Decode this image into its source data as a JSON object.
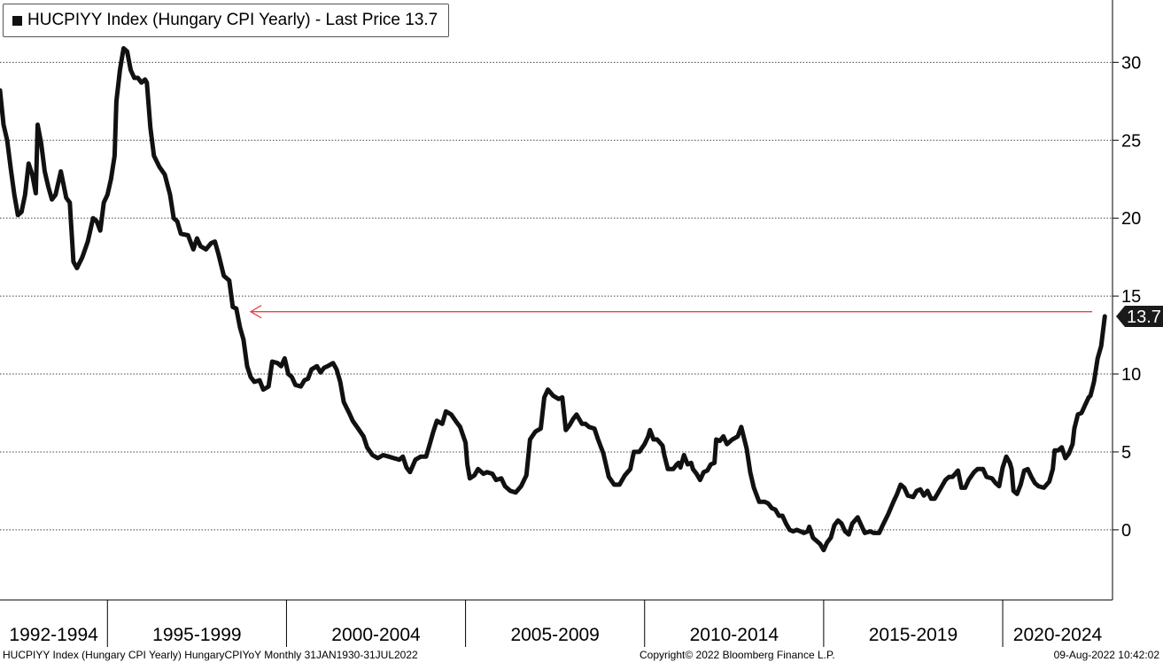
{
  "legend": {
    "text": "HUCPIYY Index (Hungary CPI Yearly) - Last Price 13.7"
  },
  "footer": {
    "left": "HUCPIYY Index (Hungary CPI Yearly) HungaryCPIYoY  Monthly 31JAN1930-31JUL2022",
    "center": "Copyright© 2022 Bloomberg Finance L.P.",
    "right": "09-Aug-2022 10:42:02"
  },
  "colors": {
    "line": "#111111",
    "arrow": "#e8424a",
    "grid": "#444444",
    "tag_bg": "#1a1a1a"
  },
  "chart_data": {
    "type": "line",
    "title": "HUCPIYY Index (Hungary CPI Yearly) - Last Price 13.7",
    "xlabel": "",
    "ylabel": "",
    "ylim": [
      -4.5,
      34
    ],
    "yticks": [
      0,
      5,
      10,
      15,
      20,
      25,
      30
    ],
    "y_axis_side": "right",
    "grid": "horizontal dotted",
    "x_categories": [
      "1992-1994",
      "1995-1999",
      "2000-2004",
      "2005-2009",
      "2010-2014",
      "2015-2019",
      "2020-2024"
    ],
    "x_category_years": [
      [
        1992,
        1995
      ],
      [
        1995,
        2000
      ],
      [
        2000,
        2005
      ],
      [
        2005,
        2010
      ],
      [
        2010,
        2015
      ],
      [
        2015,
        2020
      ],
      [
        2020,
        2025
      ]
    ],
    "last_price": 13.7,
    "last_price_label": "13.7",
    "annotation": {
      "type": "arrow",
      "value": 14.0,
      "from_year": 2022.5,
      "to_year": 1999.0
    },
    "series": [
      {
        "values": [
          [
            1992.0,
            28.2
          ],
          [
            1992.1,
            26.0
          ],
          [
            1992.2,
            25.0
          ],
          [
            1992.3,
            23.2
          ],
          [
            1992.4,
            21.5
          ],
          [
            1992.5,
            20.2
          ],
          [
            1992.6,
            20.4
          ],
          [
            1992.7,
            21.5
          ],
          [
            1992.8,
            23.5
          ],
          [
            1992.9,
            22.8
          ],
          [
            1993.0,
            21.6
          ],
          [
            1993.05,
            26.0
          ],
          [
            1993.15,
            24.8
          ],
          [
            1993.25,
            23.0
          ],
          [
            1993.35,
            22.0
          ],
          [
            1993.45,
            21.2
          ],
          [
            1993.55,
            21.5
          ],
          [
            1993.7,
            23.0
          ],
          [
            1993.85,
            21.3
          ],
          [
            1993.95,
            21.0
          ],
          [
            1994.05,
            17.2
          ],
          [
            1994.15,
            16.8
          ],
          [
            1994.3,
            17.5
          ],
          [
            1994.45,
            18.5
          ],
          [
            1994.6,
            20.0
          ],
          [
            1994.7,
            19.8
          ],
          [
            1994.8,
            19.2
          ],
          [
            1994.9,
            21.0
          ],
          [
            1995.0,
            21.5
          ],
          [
            1995.1,
            22.5
          ],
          [
            1995.2,
            24.0
          ],
          [
            1995.25,
            27.5
          ],
          [
            1995.35,
            29.5
          ],
          [
            1995.45,
            30.9
          ],
          [
            1995.55,
            30.7
          ],
          [
            1995.65,
            29.5
          ],
          [
            1995.75,
            29.0
          ],
          [
            1995.85,
            29.0
          ],
          [
            1995.95,
            28.7
          ],
          [
            1996.05,
            28.9
          ],
          [
            1996.1,
            28.7
          ],
          [
            1996.2,
            25.8
          ],
          [
            1996.3,
            24.0
          ],
          [
            1996.45,
            23.3
          ],
          [
            1996.6,
            22.8
          ],
          [
            1996.75,
            21.5
          ],
          [
            1996.85,
            20.0
          ],
          [
            1996.95,
            19.8
          ],
          [
            1997.05,
            19.0
          ],
          [
            1997.25,
            18.9
          ],
          [
            1997.4,
            18.0
          ],
          [
            1997.5,
            18.7
          ],
          [
            1997.6,
            18.2
          ],
          [
            1997.75,
            18.0
          ],
          [
            1997.9,
            18.4
          ],
          [
            1998.0,
            18.5
          ],
          [
            1998.1,
            17.7
          ],
          [
            1998.25,
            16.3
          ],
          [
            1998.4,
            16.0
          ],
          [
            1998.5,
            14.3
          ],
          [
            1998.6,
            14.2
          ],
          [
            1998.7,
            13.0
          ],
          [
            1998.8,
            12.2
          ],
          [
            1998.9,
            10.5
          ],
          [
            1999.0,
            9.8
          ],
          [
            1999.1,
            9.5
          ],
          [
            1999.25,
            9.6
          ],
          [
            1999.35,
            9.0
          ],
          [
            1999.5,
            9.2
          ],
          [
            1999.6,
            10.8
          ],
          [
            1999.75,
            10.7
          ],
          [
            1999.85,
            10.5
          ],
          [
            1999.95,
            11.0
          ],
          [
            2000.05,
            10.0
          ],
          [
            2000.15,
            9.8
          ],
          [
            2000.25,
            9.3
          ],
          [
            2000.4,
            9.2
          ],
          [
            2000.5,
            9.6
          ],
          [
            2000.6,
            9.7
          ],
          [
            2000.7,
            10.3
          ],
          [
            2000.85,
            10.5
          ],
          [
            2000.95,
            10.1
          ],
          [
            2001.05,
            10.4
          ],
          [
            2001.15,
            10.5
          ],
          [
            2001.3,
            10.7
          ],
          [
            2001.4,
            10.3
          ],
          [
            2001.5,
            9.5
          ],
          [
            2001.6,
            8.2
          ],
          [
            2001.75,
            7.5
          ],
          [
            2001.85,
            7.0
          ],
          [
            2002.0,
            6.5
          ],
          [
            2002.15,
            6.0
          ],
          [
            2002.25,
            5.3
          ],
          [
            2002.4,
            4.8
          ],
          [
            2002.55,
            4.6
          ],
          [
            2002.7,
            4.8
          ],
          [
            2002.85,
            4.7
          ],
          [
            2003.0,
            4.6
          ],
          [
            2003.15,
            4.5
          ],
          [
            2003.25,
            4.7
          ],
          [
            2003.35,
            4.0
          ],
          [
            2003.45,
            3.7
          ],
          [
            2003.6,
            4.5
          ],
          [
            2003.75,
            4.7
          ],
          [
            2003.9,
            4.7
          ],
          [
            2004.0,
            5.5
          ],
          [
            2004.1,
            6.3
          ],
          [
            2004.2,
            7.0
          ],
          [
            2004.35,
            6.8
          ],
          [
            2004.45,
            7.6
          ],
          [
            2004.6,
            7.4
          ],
          [
            2004.75,
            6.9
          ],
          [
            2004.85,
            6.6
          ],
          [
            2005.0,
            5.6
          ],
          [
            2005.05,
            4.2
          ],
          [
            2005.12,
            3.3
          ],
          [
            2005.25,
            3.5
          ],
          [
            2005.35,
            3.9
          ],
          [
            2005.5,
            3.6
          ],
          [
            2005.6,
            3.7
          ],
          [
            2005.75,
            3.6
          ],
          [
            2005.85,
            3.2
          ],
          [
            2006.0,
            3.3
          ],
          [
            2006.1,
            2.8
          ],
          [
            2006.25,
            2.5
          ],
          [
            2006.4,
            2.4
          ],
          [
            2006.55,
            2.8
          ],
          [
            2006.7,
            3.5
          ],
          [
            2006.8,
            5.8
          ],
          [
            2006.95,
            6.3
          ],
          [
            2007.1,
            6.5
          ],
          [
            2007.2,
            8.5
          ],
          [
            2007.3,
            9.0
          ],
          [
            2007.45,
            8.6
          ],
          [
            2007.6,
            8.4
          ],
          [
            2007.7,
            8.5
          ],
          [
            2007.8,
            6.4
          ],
          [
            2007.9,
            6.7
          ],
          [
            2008.0,
            7.1
          ],
          [
            2008.1,
            7.4
          ],
          [
            2008.25,
            6.8
          ],
          [
            2008.35,
            6.8
          ],
          [
            2008.45,
            6.6
          ],
          [
            2008.6,
            6.5
          ],
          [
            2008.7,
            5.8
          ],
          [
            2008.85,
            4.9
          ],
          [
            2009.0,
            3.4
          ],
          [
            2009.15,
            2.9
          ],
          [
            2009.3,
            2.9
          ],
          [
            2009.45,
            3.5
          ],
          [
            2009.6,
            3.9
          ],
          [
            2009.7,
            5.0
          ],
          [
            2009.85,
            5.0
          ],
          [
            2010.0,
            5.5
          ],
          [
            2010.1,
            6.0
          ],
          [
            2010.15,
            6.4
          ],
          [
            2010.25,
            5.8
          ],
          [
            2010.35,
            5.8
          ],
          [
            2010.5,
            5.4
          ],
          [
            2010.55,
            4.8
          ],
          [
            2010.65,
            3.9
          ],
          [
            2010.8,
            3.9
          ],
          [
            2010.9,
            4.2
          ],
          [
            2010.95,
            4.3
          ],
          [
            2011.0,
            4.0
          ],
          [
            2011.1,
            4.8
          ],
          [
            2011.2,
            4.2
          ],
          [
            2011.3,
            4.3
          ],
          [
            2011.35,
            3.9
          ],
          [
            2011.45,
            3.6
          ],
          [
            2011.55,
            3.2
          ],
          [
            2011.65,
            3.7
          ],
          [
            2011.75,
            3.8
          ],
          [
            2011.85,
            4.2
          ],
          [
            2011.95,
            4.3
          ],
          [
            2012.0,
            5.8
          ],
          [
            2012.1,
            5.7
          ],
          [
            2012.2,
            6.0
          ],
          [
            2012.3,
            5.5
          ],
          [
            2012.45,
            5.8
          ],
          [
            2012.6,
            6.0
          ],
          [
            2012.7,
            6.6
          ],
          [
            2012.85,
            5.2
          ],
          [
            2012.95,
            3.7
          ],
          [
            2013.05,
            2.7
          ],
          [
            2013.2,
            1.8
          ],
          [
            2013.35,
            1.8
          ],
          [
            2013.45,
            1.7
          ],
          [
            2013.55,
            1.4
          ],
          [
            2013.65,
            1.3
          ],
          [
            2013.75,
            0.9
          ],
          [
            2013.85,
            0.9
          ],
          [
            2013.95,
            0.4
          ],
          [
            2014.05,
            0.0
          ],
          [
            2014.15,
            -0.1
          ],
          [
            2014.25,
            0.0
          ],
          [
            2014.35,
            -0.1
          ],
          [
            2014.45,
            -0.2
          ],
          [
            2014.55,
            -0.1
          ],
          [
            2014.6,
            0.2
          ],
          [
            2014.7,
            -0.5
          ],
          [
            2014.8,
            -0.7
          ],
          [
            2014.9,
            -0.9
          ],
          [
            2015.0,
            -1.3
          ],
          [
            2015.1,
            -0.8
          ],
          [
            2015.2,
            -0.5
          ],
          [
            2015.3,
            0.3
          ],
          [
            2015.4,
            0.6
          ],
          [
            2015.5,
            0.4
          ],
          [
            2015.6,
            -0.1
          ],
          [
            2015.7,
            -0.3
          ],
          [
            2015.8,
            0.4
          ],
          [
            2015.95,
            0.8
          ],
          [
            2016.05,
            0.3
          ],
          [
            2016.15,
            -0.2
          ],
          [
            2016.3,
            -0.1
          ],
          [
            2016.4,
            -0.2
          ],
          [
            2016.55,
            -0.2
          ],
          [
            2016.65,
            0.3
          ],
          [
            2016.8,
            1.0
          ],
          [
            2016.95,
            1.8
          ],
          [
            2017.05,
            2.3
          ],
          [
            2017.15,
            2.9
          ],
          [
            2017.25,
            2.7
          ],
          [
            2017.35,
            2.2
          ],
          [
            2017.5,
            2.1
          ],
          [
            2017.6,
            2.5
          ],
          [
            2017.7,
            2.6
          ],
          [
            2017.8,
            2.2
          ],
          [
            2017.9,
            2.5
          ],
          [
            2018.0,
            2.0
          ],
          [
            2018.1,
            2.0
          ],
          [
            2018.25,
            2.6
          ],
          [
            2018.4,
            3.2
          ],
          [
            2018.5,
            3.4
          ],
          [
            2018.6,
            3.4
          ],
          [
            2018.75,
            3.8
          ],
          [
            2018.85,
            2.7
          ],
          [
            2018.95,
            2.7
          ],
          [
            2019.05,
            3.2
          ],
          [
            2019.2,
            3.7
          ],
          [
            2019.3,
            3.9
          ],
          [
            2019.45,
            3.9
          ],
          [
            2019.55,
            3.4
          ],
          [
            2019.7,
            3.3
          ],
          [
            2019.8,
            3.0
          ],
          [
            2019.9,
            2.8
          ],
          [
            2020.0,
            4.0
          ],
          [
            2020.1,
            4.7
          ],
          [
            2020.2,
            4.3
          ],
          [
            2020.25,
            3.9
          ],
          [
            2020.3,
            2.5
          ],
          [
            2020.4,
            2.3
          ],
          [
            2020.5,
            2.9
          ],
          [
            2020.6,
            3.8
          ],
          [
            2020.7,
            3.9
          ],
          [
            2020.8,
            3.4
          ],
          [
            2020.9,
            3.0
          ],
          [
            2021.0,
            2.8
          ],
          [
            2021.15,
            2.7
          ],
          [
            2021.3,
            3.1
          ],
          [
            2021.4,
            3.9
          ],
          [
            2021.45,
            5.1
          ],
          [
            2021.55,
            5.1
          ],
          [
            2021.65,
            5.3
          ],
          [
            2021.75,
            4.6
          ],
          [
            2021.85,
            4.9
          ],
          [
            2021.95,
            5.5
          ],
          [
            2022.0,
            6.5
          ],
          [
            2022.1,
            7.4
          ],
          [
            2022.2,
            7.5
          ],
          [
            2022.3,
            8.0
          ],
          [
            2022.4,
            8.5
          ],
          [
            2022.45,
            8.6
          ],
          [
            2022.55,
            9.5
          ],
          [
            2022.65,
            11.0
          ],
          [
            2022.75,
            11.8
          ],
          [
            2022.85,
            13.7
          ]
        ]
      }
    ]
  }
}
